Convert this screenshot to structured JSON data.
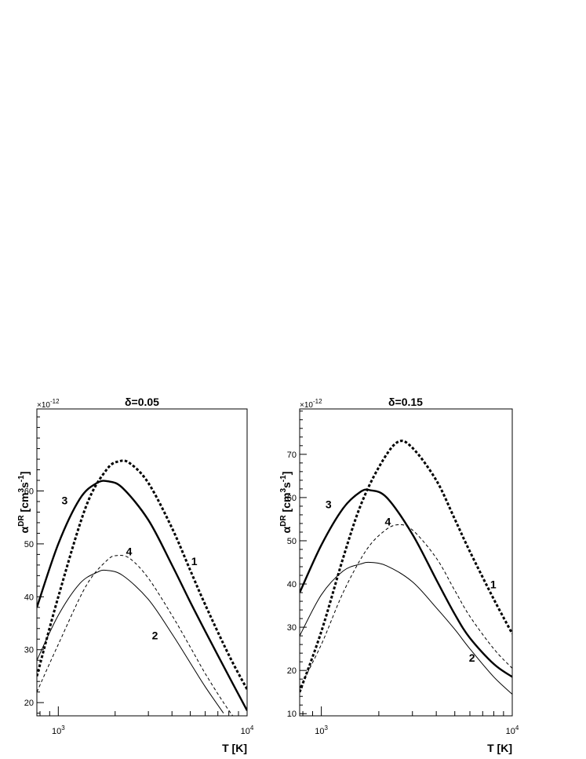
{
  "chart_data": [
    {
      "type": "line",
      "title": "δ=0.05",
      "xlabel": "T [K]",
      "ylabel": "α^DR [cm^3 s^-1]",
      "ylabel_parts": {
        "main": "α",
        "sup1": "DR",
        "unit_open": " [cm",
        "sup2": "3",
        "mid": "s",
        "sup3": "-1",
        "unit_close": "]"
      },
      "y_multiplier": "×10^-12",
      "y_multiplier_parts": {
        "base": "×10",
        "exp": "-12"
      },
      "xscale": "log",
      "xlim": [
        770,
        10000
      ],
      "ylim": [
        17.5,
        75.5
      ],
      "yticks": [
        20,
        30,
        40,
        50,
        60
      ],
      "xticks": [
        {
          "value": 1000,
          "base": "10",
          "exp": "3"
        },
        {
          "value": 10000,
          "base": "10",
          "exp": "4"
        }
      ],
      "series": [
        {
          "name": "1",
          "style": "thick-dotted",
          "points": [
            [
              770,
              25
            ],
            [
              1000,
              40
            ],
            [
              1400,
              57
            ],
            [
              1800,
              64
            ],
            [
              2100,
              65.6
            ],
            [
              2400,
              65.2
            ],
            [
              3000,
              61.5
            ],
            [
              4000,
              53
            ],
            [
              5000,
              45
            ],
            [
              6000,
              38.5
            ],
            [
              8000,
              29
            ],
            [
              10000,
              22.5
            ]
          ]
        },
        {
          "name": "2",
          "style": "thin-solid",
          "points": [
            [
              770,
              28
            ],
            [
              1000,
              36.5
            ],
            [
              1300,
              42.5
            ],
            [
              1600,
              44.6
            ],
            [
              1800,
              45
            ],
            [
              2200,
              44
            ],
            [
              3000,
              39.5
            ],
            [
              4000,
              33
            ],
            [
              5000,
              27.5
            ],
            [
              6000,
              23
            ],
            [
              7500,
              18
            ]
          ]
        },
        {
          "name": "3",
          "style": "thick-solid",
          "points": [
            [
              770,
              38
            ],
            [
              1000,
              50
            ],
            [
              1300,
              58.5
            ],
            [
              1600,
              61.5
            ],
            [
              1850,
              61.8
            ],
            [
              2200,
              60.5
            ],
            [
              3000,
              54.5
            ],
            [
              4000,
              46
            ],
            [
              5000,
              39
            ],
            [
              6000,
              33.5
            ],
            [
              8000,
              25
            ],
            [
              10000,
              18.5
            ]
          ]
        },
        {
          "name": "4",
          "style": "thin-dashed",
          "points": [
            [
              770,
              22
            ],
            [
              1000,
              31
            ],
            [
              1400,
              42
            ],
            [
              1800,
              46.8
            ],
            [
              2050,
              47.8
            ],
            [
              2400,
              47.2
            ],
            [
              3000,
              43.5
            ],
            [
              4000,
              36.5
            ],
            [
              5000,
              30.5
            ],
            [
              6000,
              25.5
            ],
            [
              7500,
              20
            ],
            [
              9000,
              16
            ]
          ]
        }
      ],
      "curve_labels": [
        {
          "text": "1",
          "x": 5250,
          "y": 46
        },
        {
          "text": "2",
          "x": 3250,
          "y": 32
        },
        {
          "text": "3",
          "x": 1080,
          "y": 57.5
        },
        {
          "text": "4",
          "x": 2370,
          "y": 47.8
        }
      ]
    },
    {
      "type": "line",
      "title": "δ=0.15",
      "xlabel": "T [K]",
      "ylabel": "α^DR [cm^3 s^-1]",
      "ylabel_parts": {
        "main": "α",
        "sup1": "DR",
        "unit_open": " [cm",
        "sup2": "3",
        "mid": "s",
        "sup3": "-1",
        "unit_close": "]"
      },
      "y_multiplier": "×10^-12",
      "y_multiplier_parts": {
        "base": "×10",
        "exp": "-12"
      },
      "xscale": "log",
      "xlim": [
        770,
        10000
      ],
      "ylim": [
        9.5,
        80.5
      ],
      "yticks": [
        10,
        20,
        30,
        40,
        50,
        60,
        70
      ],
      "xticks": [
        {
          "value": 1000,
          "base": "10",
          "exp": "3"
        },
        {
          "value": 10000,
          "base": "10",
          "exp": "4"
        }
      ],
      "series": [
        {
          "name": "1",
          "style": "thick-dotted",
          "points": [
            [
              770,
              15
            ],
            [
              1000,
              29
            ],
            [
              1300,
              46
            ],
            [
              1600,
              58
            ],
            [
              2000,
              67
            ],
            [
              2500,
              72.8
            ],
            [
              3000,
              71.5
            ],
            [
              4000,
              64
            ],
            [
              5000,
              55
            ],
            [
              6000,
              47.5
            ],
            [
              8000,
              36.5
            ],
            [
              10000,
              28.5
            ]
          ]
        },
        {
          "name": "2",
          "style": "thin-solid",
          "points": [
            [
              770,
              28
            ],
            [
              1000,
              37.5
            ],
            [
              1300,
              43
            ],
            [
              1600,
              44.6
            ],
            [
              1800,
              45
            ],
            [
              2200,
              44.2
            ],
            [
              3000,
              40.5
            ],
            [
              4000,
              34.5
            ],
            [
              5000,
              29.5
            ],
            [
              6000,
              25
            ],
            [
              8000,
              18.5
            ],
            [
              10000,
              14.5
            ]
          ]
        },
        {
          "name": "3",
          "style": "thick-solid",
          "points": [
            [
              770,
              38
            ],
            [
              1000,
              49
            ],
            [
              1300,
              57.5
            ],
            [
              1600,
              61.3
            ],
            [
              1800,
              61.7
            ],
            [
              2200,
              60
            ],
            [
              3000,
              51.5
            ],
            [
              4000,
              41
            ],
            [
              5000,
              33
            ],
            [
              6000,
              27.5
            ],
            [
              8000,
              21.5
            ],
            [
              10000,
              18.5
            ]
          ]
        },
        {
          "name": "4",
          "style": "thin-dashed",
          "points": [
            [
              770,
              16
            ],
            [
              1000,
              26
            ],
            [
              1300,
              38
            ],
            [
              1700,
              47.5
            ],
            [
              2100,
              52
            ],
            [
              2500,
              53.7
            ],
            [
              3000,
              52.5
            ],
            [
              4000,
              46
            ],
            [
              5000,
              38.5
            ],
            [
              6000,
              32.5
            ],
            [
              8000,
              25
            ],
            [
              10000,
              20.5
            ]
          ]
        }
      ],
      "curve_labels": [
        {
          "text": "1",
          "x": 7950,
          "y": 39
        },
        {
          "text": "2",
          "x": 6150,
          "y": 22
        },
        {
          "text": "3",
          "x": 1090,
          "y": 57.5
        },
        {
          "text": "4",
          "x": 2230,
          "y": 53.5
        }
      ]
    }
  ]
}
